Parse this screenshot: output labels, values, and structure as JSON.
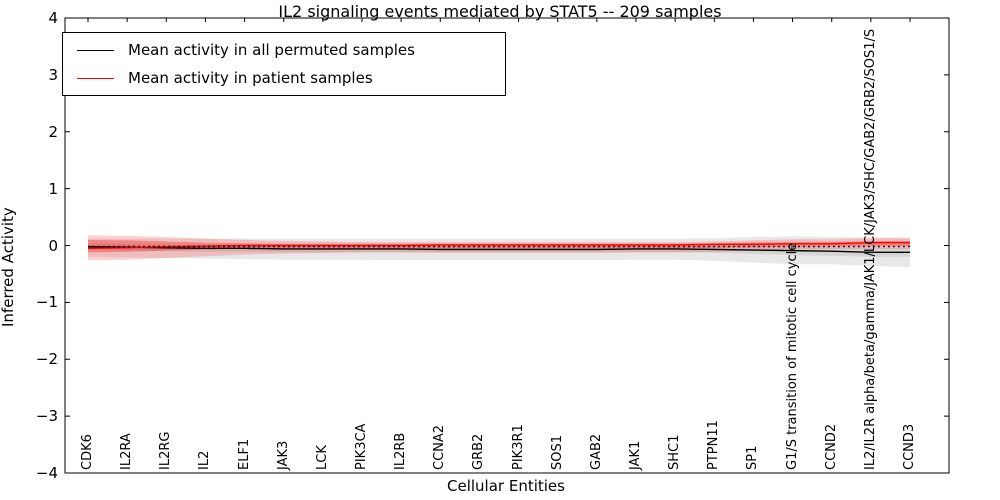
{
  "chart_data": {
    "type": "line",
    "title": "IL2 signaling events mediated by STAT5 -- 209 samples",
    "xlabel": "Cellular Entities",
    "ylabel": "Inferred Activity",
    "ylim": [
      -4,
      4
    ],
    "yticks": [
      4,
      3,
      2,
      1,
      0,
      -1,
      -2,
      -3,
      -4
    ],
    "ytick_labels": [
      "4",
      "3",
      "2",
      "1",
      "0",
      "−1",
      "−2",
      "−3",
      "−4"
    ],
    "grid": false,
    "legend_position": "upper left",
    "categories": [
      "CDK6",
      "IL2RA",
      "IL2RG",
      "IL2",
      "ELF1",
      "JAK3",
      "LCK",
      "PIK3CA",
      "IL2RB",
      "CCNA2",
      "GRB2",
      "PIK3R1",
      "SOS1",
      "GAB2",
      "JAK1",
      "SHC1",
      "PTPN11",
      "SP1",
      "G1/S transition of mitotic cell cycle",
      "CCND2",
      "IL2/IL2R alpha/beta/gamma/JAK1/LCK/JAK3/SHC/GAB2/GRB2/SOS1/S",
      "CCND3"
    ],
    "series": [
      {
        "name": "Mean activity in all permuted samples",
        "color": "#000000",
        "values": [
          -0.02,
          -0.03,
          -0.04,
          -0.05,
          -0.05,
          -0.06,
          -0.06,
          -0.06,
          -0.06,
          -0.07,
          -0.07,
          -0.07,
          -0.07,
          -0.07,
          -0.06,
          -0.06,
          -0.07,
          -0.08,
          -0.09,
          -0.1,
          -0.12,
          -0.12
        ]
      },
      {
        "name": "Mean activity in patient samples",
        "color": "#ff0000",
        "values": [
          -0.05,
          -0.04,
          -0.02,
          -0.01,
          0.0,
          0.0,
          0.0,
          0.0,
          0.0,
          0.01,
          0.01,
          0.01,
          0.01,
          0.01,
          0.01,
          0.01,
          0.02,
          0.02,
          0.03,
          0.03,
          0.05,
          0.05
        ]
      }
    ],
    "bands": [
      {
        "name": "permuted-outer-band",
        "color": "#000000",
        "opacity": 0.09,
        "upper": [
          0.12,
          0.12,
          0.12,
          0.12,
          0.12,
          0.12,
          0.12,
          0.12,
          0.12,
          0.12,
          0.12,
          0.12,
          0.12,
          0.12,
          0.12,
          0.12,
          0.13,
          0.15,
          0.16,
          0.15,
          0.14,
          0.14
        ],
        "lower": [
          -0.2,
          -0.21,
          -0.22,
          -0.23,
          -0.24,
          -0.25,
          -0.25,
          -0.25,
          -0.26,
          -0.26,
          -0.26,
          -0.26,
          -0.26,
          -0.26,
          -0.25,
          -0.25,
          -0.27,
          -0.3,
          -0.33,
          -0.33,
          -0.36,
          -0.38
        ]
      },
      {
        "name": "permuted-inner-band",
        "color": "#000000",
        "opacity": 0.08,
        "upper": [
          0.04,
          0.03,
          0.02,
          0.01,
          0.01,
          0.01,
          0.0,
          0.0,
          0.0,
          0.0,
          0.0,
          0.0,
          0.0,
          0.0,
          0.0,
          0.0,
          0.0,
          -0.01,
          -0.02,
          -0.03,
          -0.04,
          -0.04
        ],
        "lower": [
          -0.08,
          -0.09,
          -0.1,
          -0.11,
          -0.11,
          -0.12,
          -0.12,
          -0.12,
          -0.12,
          -0.13,
          -0.13,
          -0.13,
          -0.13,
          -0.13,
          -0.12,
          -0.12,
          -0.13,
          -0.15,
          -0.17,
          -0.18,
          -0.2,
          -0.2
        ]
      },
      {
        "name": "patient-outer-band",
        "color": "#ff0000",
        "opacity": 0.18,
        "upper": [
          0.18,
          0.17,
          0.15,
          0.12,
          0.1,
          0.08,
          0.07,
          0.06,
          0.06,
          0.06,
          0.06,
          0.06,
          0.06,
          0.06,
          0.06,
          0.06,
          0.07,
          0.09,
          0.11,
          0.11,
          0.13,
          0.13
        ],
        "lower": [
          -0.26,
          -0.25,
          -0.22,
          -0.19,
          -0.16,
          -0.14,
          -0.13,
          -0.12,
          -0.12,
          -0.12,
          -0.12,
          -0.12,
          -0.12,
          -0.12,
          -0.12,
          -0.12,
          -0.11,
          -0.09,
          -0.07,
          -0.06,
          -0.06,
          -0.06
        ]
      },
      {
        "name": "patient-inner-band",
        "color": "#ff0000",
        "opacity": 0.3,
        "upper": [
          0.1,
          0.09,
          0.07,
          0.05,
          0.04,
          0.03,
          0.03,
          0.03,
          0.03,
          0.03,
          0.03,
          0.03,
          0.03,
          0.03,
          0.03,
          0.03,
          0.04,
          0.05,
          0.06,
          0.06,
          0.08,
          0.08
        ],
        "lower": [
          -0.12,
          -0.11,
          -0.09,
          -0.07,
          -0.06,
          -0.05,
          -0.05,
          -0.05,
          -0.05,
          -0.05,
          -0.05,
          -0.05,
          -0.05,
          -0.05,
          -0.05,
          -0.05,
          -0.04,
          -0.03,
          -0.02,
          -0.02,
          -0.01,
          -0.01
        ]
      }
    ],
    "zero_line": {
      "value": 0,
      "style": "dotted",
      "color": "#000000"
    }
  }
}
